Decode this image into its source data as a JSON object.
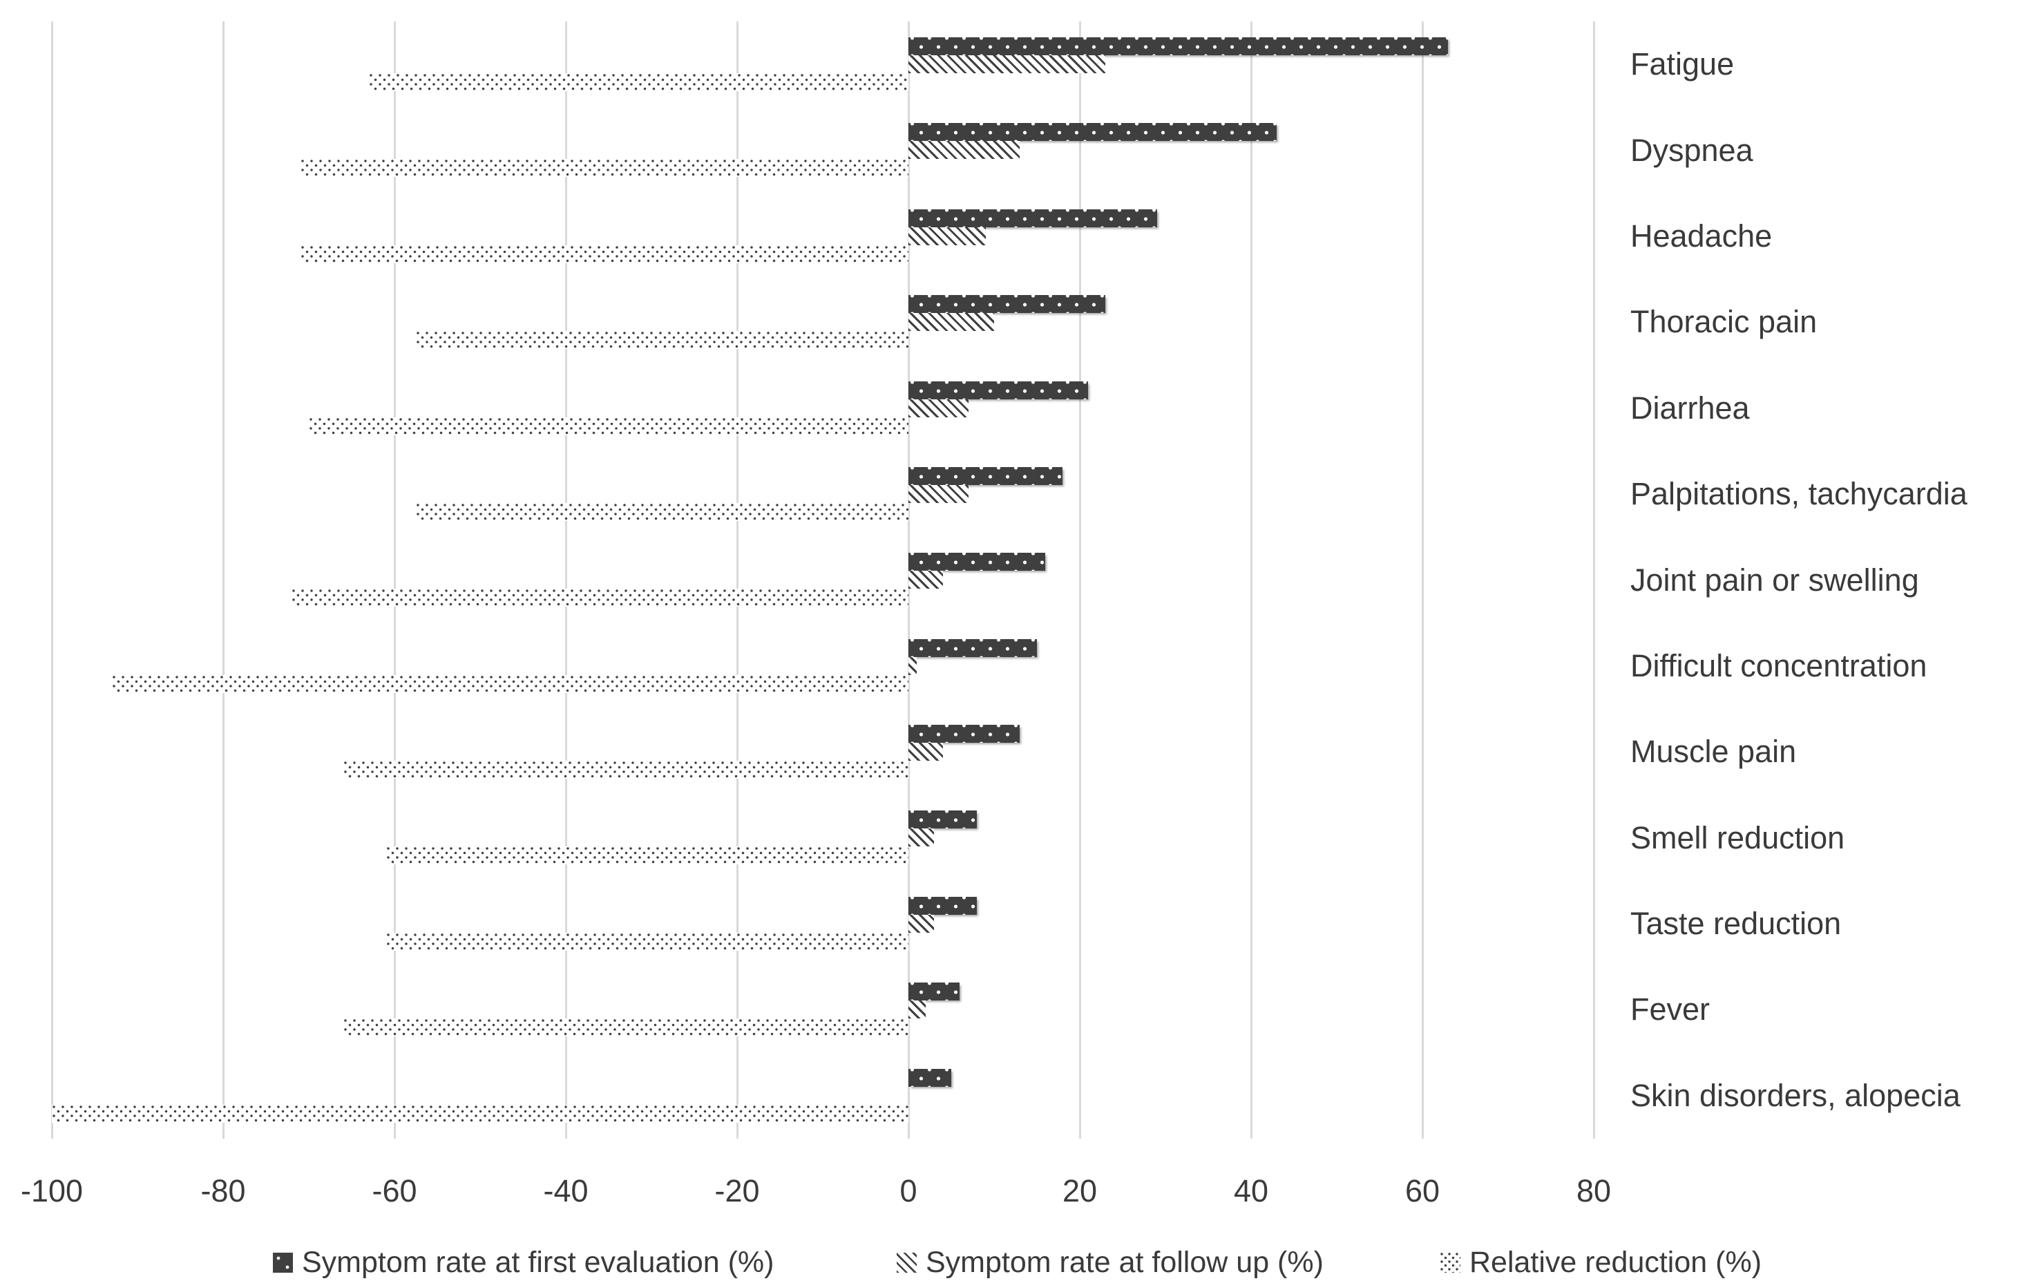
{
  "chart_data": {
    "type": "bar",
    "orientation": "horizontal",
    "title": "",
    "xlabel": "",
    "ylabel": "",
    "xlim": [
      -100,
      80
    ],
    "x_ticks": [
      -100,
      -80,
      -60,
      -40,
      -20,
      0,
      20,
      40,
      60,
      80
    ],
    "grid": "vertical",
    "legend_position": "bottom",
    "categories": [
      "Fatigue",
      "Dyspnea",
      "Headache",
      "Thoracic pain",
      "Diarrhea",
      "Palpitations, tachycardia",
      "Joint pain or swelling",
      "Difficult concentration",
      "Muscle pain",
      "Smell reduction",
      "Taste reduction",
      "Fever",
      "Skin disorders, alopecia"
    ],
    "series": [
      {
        "name": "Symptom rate at first evaluation (%)",
        "pattern": "dark-white-dots",
        "values": [
          63,
          43,
          29,
          23,
          21,
          18,
          16,
          15,
          13,
          8,
          8,
          6,
          5
        ]
      },
      {
        "name": "Symptom rate at follow up (%)",
        "pattern": "diagonal-hatch",
        "values": [
          23,
          13,
          9,
          10,
          7,
          7,
          4,
          1,
          4,
          3,
          3,
          2,
          0
        ]
      },
      {
        "name": "Relative reduction (%)",
        "pattern": "light-dots",
        "values": [
          -63,
          -71,
          -71,
          -57.5,
          -70,
          -57.5,
          -72,
          -93,
          -66,
          -61,
          -61,
          -66,
          -100
        ]
      }
    ],
    "colors": {
      "bar": "#3f3f3f",
      "gridline": "#d9d9d9",
      "text": "#3a3a3a",
      "background": "#ffffff"
    }
  }
}
